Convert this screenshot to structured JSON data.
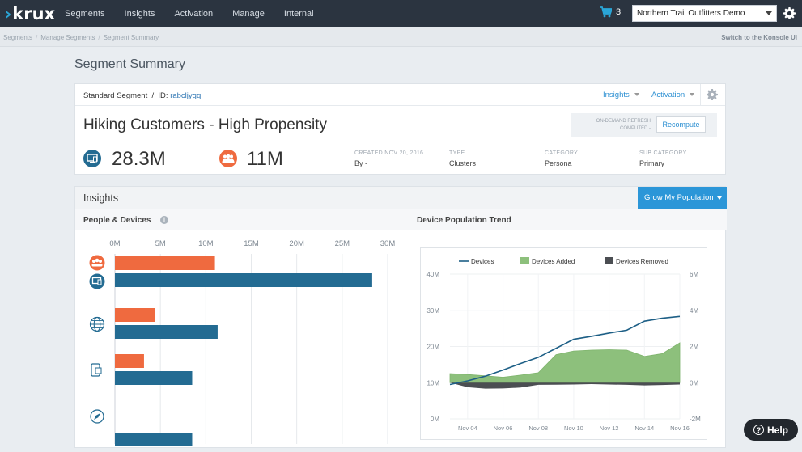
{
  "topbar": {
    "logo": "krux",
    "nav": [
      "Segments",
      "Insights",
      "Activation",
      "Manage",
      "Internal"
    ],
    "cart_count": "3",
    "org_select": "Northern Trail Outfitters Demo"
  },
  "breadcrumbs": {
    "items": [
      "Segments",
      "Manage Segments",
      "Segment Summary"
    ],
    "switch_link": "Switch to the Konsole UI"
  },
  "page_title": "Segment Summary",
  "segment": {
    "type_label": "Standard Segment  /  ID:",
    "id": "rabcljygq",
    "menu_insights": "Insights",
    "menu_activation": "Activation",
    "name": "Hiking Customers - High Propensity",
    "recompute_label_1": "ON-DEMAND REFRESH",
    "recompute_label_2": "COMPUTED -",
    "recompute_button": "Recompute",
    "devices_count": "28.3M",
    "people_count": "11M",
    "meta": {
      "created_label": "CREATED NOV 20, 2016",
      "created_value": "By -",
      "type_label": "TYPE",
      "type_value": "Clusters",
      "category_label": "CATEGORY",
      "category_value": "Persona",
      "subcategory_label": "SUB CATEGORY",
      "subcategory_value": "Primary"
    },
    "colors": {
      "people": "#ef6a3f",
      "devices": "#236b92"
    }
  },
  "insights": {
    "title": "Insights",
    "grow_button": "Grow My Population",
    "people_devices_title": "People & Devices",
    "trend_title": "Device Population Trend"
  },
  "help_button": "Help",
  "chart_data": [
    {
      "type": "bar",
      "title": "People & Devices",
      "orientation": "horizontal",
      "categories": [
        "all",
        "web",
        "mobile",
        "other"
      ],
      "category_icons": [
        "people/devices-icon",
        "globe-icon",
        "mobile-icon",
        "compass-icon"
      ],
      "series": [
        {
          "name": "People",
          "values": [
            11,
            4.4,
            3.2,
            null
          ],
          "color": "#ef6a3f"
        },
        {
          "name": "Devices",
          "values": [
            28.3,
            11.3,
            8.5,
            8.5
          ],
          "color": "#236b92"
        }
      ],
      "xticks": [
        "0M",
        "5M",
        "10M",
        "15M",
        "20M",
        "25M",
        "30M"
      ],
      "xlim": [
        0,
        30
      ],
      "grid": true
    },
    {
      "type": "line",
      "title": "Device Population Trend",
      "x": [
        "Nov 03",
        "Nov 04",
        "Nov 05",
        "Nov 06",
        "Nov 07",
        "Nov 08",
        "Nov 09",
        "Nov 10",
        "Nov 11",
        "Nov 12",
        "Nov 13",
        "Nov 14",
        "Nov 15",
        "Nov 16"
      ],
      "xticks": [
        "Nov 04",
        "Nov 06",
        "Nov 08",
        "Nov 10",
        "Nov 12",
        "Nov 14",
        "Nov 16"
      ],
      "left_axis": {
        "ticks": [
          "0M",
          "10M",
          "20M",
          "30M",
          "40M"
        ],
        "lim": [
          0,
          40
        ]
      },
      "right_axis": {
        "ticks": [
          "-2M",
          "0M",
          "2M",
          "4M",
          "6M"
        ],
        "lim": [
          -2,
          6
        ]
      },
      "series": [
        {
          "name": "Devices",
          "kind": "line",
          "axis": "left",
          "color": "#1d5f86",
          "values": [
            9.5,
            10.5,
            11.8,
            13.5,
            15.3,
            17,
            19.5,
            22,
            22.8,
            23.7,
            24.5,
            27,
            27.8,
            28.3
          ]
        },
        {
          "name": "Devices Added",
          "kind": "area",
          "axis": "right",
          "color": "#8dc07c",
          "values": [
            0.5,
            0.45,
            0.38,
            0.3,
            0.42,
            0.55,
            1.55,
            1.75,
            1.8,
            1.82,
            1.8,
            1.45,
            1.6,
            2.2
          ]
        },
        {
          "name": "Devices Removed",
          "kind": "area",
          "axis": "right",
          "color": "#4b4e52",
          "values": [
            0,
            -0.25,
            -0.33,
            -0.32,
            -0.27,
            -0.12,
            -0.11,
            -0.1,
            -0.08,
            -0.1,
            -0.12,
            -0.15,
            -0.13,
            -0.1
          ]
        }
      ],
      "legend": "top",
      "grid": true
    }
  ]
}
